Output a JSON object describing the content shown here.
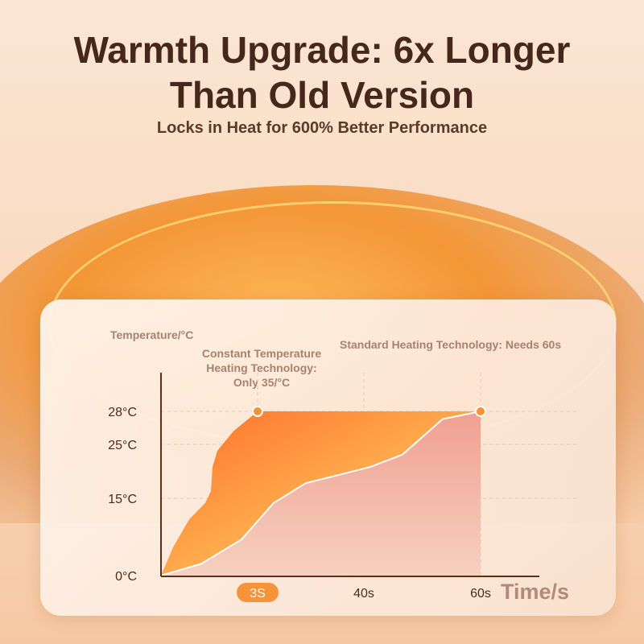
{
  "header": {
    "title": "Warmth Upgrade: 6x Longer Than Old Version",
    "subtitle": "Locks in Heat for 600% Better Performance"
  },
  "chart_data": {
    "type": "area",
    "ylabel": "Temperature/°C",
    "xlabel": "Time/s",
    "y_ticks": [
      "0°C",
      "15°C",
      "25°C",
      "28°C"
    ],
    "y_tick_values": [
      0,
      15,
      25,
      28
    ],
    "x_ticks": [
      "3S",
      "40s",
      "60s"
    ],
    "x_tick_values": [
      3,
      40,
      60
    ],
    "grid": true,
    "annotations": [
      {
        "text": "Constant Temperature Heating Technology: Only 35/°C",
        "x": 3,
        "y": 28
      },
      {
        "text": "Standard Heating Technology: Needs 60s",
        "x": 60,
        "y": 28
      }
    ],
    "series": [
      {
        "x": [
          0,
          0.375,
          0.875,
          1.375,
          1.55,
          1.6,
          1.75,
          2.25,
          3,
          60
        ],
        "y": [
          0,
          5.5,
          10.9,
          14.1,
          16.3,
          20.8,
          23.8,
          26.2,
          28,
          28
        ],
        "color": "#ff7a2a"
      },
      {
        "x": [
          0,
          1.25,
          2.5,
          8.6,
          19.8,
          31,
          41.1,
          46.6,
          53.5,
          60
        ],
        "y": [
          0,
          2.3,
          7,
          14.1,
          17.8,
          19.3,
          20.8,
          23.1,
          27.3,
          28
        ],
        "color": "#f2a090"
      }
    ],
    "highlight_color": "#f7943a"
  }
}
